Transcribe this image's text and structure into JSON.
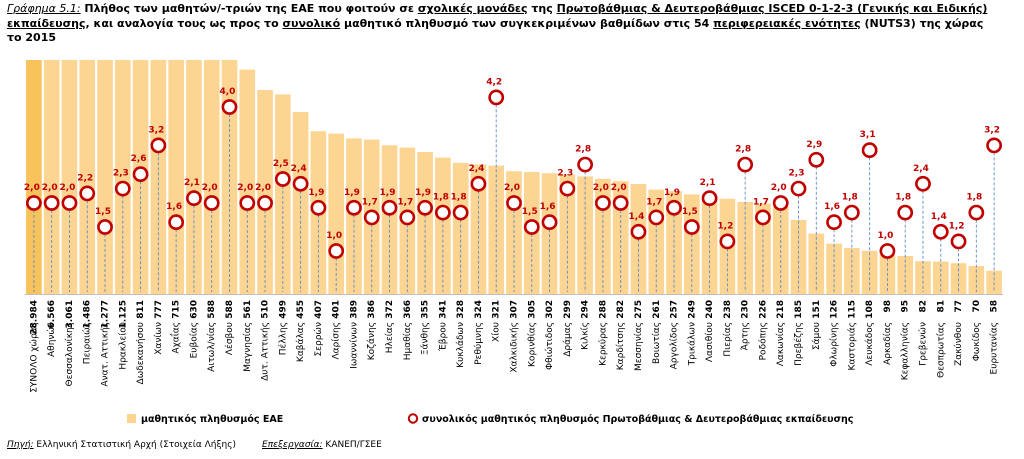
{
  "title": {
    "fig_label": "Γράφημα 5.1:",
    "t1": " Πλήθος των μαθητών/-τριών της ΕΑΕ που φοιτούν σε ",
    "u1": "σχολικές μονάδες",
    "t2": " της ",
    "u2": "Πρωτοβάθμιας & Δευτεροβάθμιας ISCED 0-1-2-3 (Γενικής και Ειδικής) εκπαίδευσης",
    "t3": ", και αναλογία τους ως προς το ",
    "u3": "συνολικό",
    "t4": " μαθητικό πληθυσμό των συγκεκριμένων βαθμίδων στις 54 ",
    "u4": "περιφερειακές ενότητες",
    "t5": " (NUTS3) της χώρας το 2015"
  },
  "chart_data": {
    "type": "bar",
    "categories": [
      "ΣΥΝΟΛΟ χώρας",
      "Αθηνών",
      "Θεσσαλονίκης",
      "Πειραιώς",
      "Ανατ. Αττικής",
      "Ηρακλείου",
      "Δωδεκανήσου",
      "Χανίων",
      "Αχαΐας",
      "Ευβοίας",
      "Αιτωλ/νίας",
      "Λέσβου",
      "Μαγνησίας",
      "Δυτ. Αττικής",
      "Πέλλης",
      "Καβάλας",
      "Σερρών",
      "Λαρίσης",
      "Ιωαννίνων",
      "Κοζάνης",
      "Ηλείας",
      "Ημαθίας",
      "Ξάνθης",
      "Έβρου",
      "Κυκλάδων",
      "Ρεθύμνης",
      "Χίου",
      "Χαλκιδικής",
      "Κορινθίας",
      "Φθιώτιδος",
      "Δράμας",
      "Κιλκίς",
      "Κερκύρας",
      "Καρδίτσης",
      "Μεσσηνίας",
      "Βοιωτίας",
      "Αργολίδος",
      "Τρικάλων",
      "Λασιθίου",
      "Πιερίας",
      "Άρτης",
      "Ροδόπης",
      "Λακωνίας",
      "Πρεβέζης",
      "Σάμου",
      "Φλωρίνης",
      "Καστοριάς",
      "Λευκάδος",
      "Αρκαδίας",
      "Κεφαλληνίας",
      "Γρεβενών",
      "Θεσπρωτίας",
      "Ζακύνθου",
      "Φωκίδος",
      "Ευρυτανίας"
    ],
    "series": [
      {
        "name": "μαθητικός πληθυσμός ΕΑΕ",
        "type": "bar",
        "values": [
          28984,
          6566,
          3061,
          1486,
          1277,
          1125,
          811,
          777,
          715,
          630,
          588,
          588,
          561,
          510,
          499,
          455,
          407,
          401,
          389,
          386,
          372,
          366,
          355,
          341,
          328,
          324,
          321,
          307,
          305,
          302,
          299,
          294,
          288,
          282,
          275,
          261,
          257,
          249,
          240,
          238,
          230,
          226,
          218,
          185,
          151,
          126,
          115,
          108,
          98,
          95,
          82,
          81,
          77,
          70,
          58
        ],
        "labels": [
          "28.984",
          "6.566",
          "3.061",
          "1.486",
          "1.277",
          "1.125",
          "811",
          "777",
          "715",
          "630",
          "588",
          "588",
          "561",
          "510",
          "499",
          "455",
          "407",
          "401",
          "389",
          "386",
          "372",
          "366",
          "355",
          "341",
          "328",
          "324",
          "321",
          "307",
          "305",
          "302",
          "299",
          "294",
          "288",
          "282",
          "275",
          "261",
          "257",
          "249",
          "240",
          "238",
          "230",
          "226",
          "218",
          "185",
          "151",
          "126",
          "115",
          "108",
          "98",
          "95",
          "82",
          "81",
          "77",
          "70",
          "58"
        ]
      },
      {
        "name": "συνολικός μαθητικός πληθυσμός Πρωτοβάθμιας & Δευτεροβάθμιας εκπαίδευσης",
        "type": "scatter",
        "values": [
          2.0,
          2.0,
          2.0,
          2.2,
          1.5,
          2.3,
          2.6,
          3.2,
          1.6,
          2.1,
          2.0,
          4.0,
          2.0,
          2.0,
          2.5,
          2.4,
          1.9,
          1.0,
          1.9,
          1.7,
          1.9,
          1.7,
          1.9,
          1.8,
          1.8,
          2.4,
          4.2,
          2.0,
          1.5,
          1.6,
          2.3,
          2.8,
          2.0,
          2.0,
          1.4,
          1.7,
          1.9,
          1.5,
          2.1,
          1.2,
          2.8,
          1.7,
          2.0,
          2.3,
          2.9,
          1.6,
          1.8,
          3.1,
          1.0,
          1.8,
          2.4,
          1.4,
          1.2,
          1.8,
          3.2
        ],
        "labels": [
          "2,0",
          "2,0",
          "2,0",
          "2,2",
          "1,5",
          "2,3",
          "2,6",
          "3,2",
          "1,6",
          "2,1",
          "2,0",
          "4,0",
          "2,0",
          "2,0",
          "2,5",
          "2,4",
          "1,9",
          "1,0",
          "1,9",
          "1,7",
          "1,9",
          "1,7",
          "1,9",
          "1,8",
          "1,8",
          "2,4",
          "4,2",
          "2,0",
          "1,5",
          "1,6",
          "2,3",
          "2,8",
          "2,0",
          "2,0",
          "1,4",
          "1,7",
          "1,9",
          "1,5",
          "2,1",
          "1,2",
          "2,8",
          "1,7",
          "2,0",
          "2,3",
          "2,9",
          "1,6",
          "1,8",
          "3,1",
          "1,0",
          "1,8",
          "2,4",
          "1,4",
          "1,2",
          "1,8",
          "3,2"
        ]
      }
    ],
    "legend_position": "bottom",
    "grid": false
  },
  "footer": {
    "source_label": "Πηγή:",
    "source_text": " Ελληνική Στατιστική Αρχή (Στοιχεία Λήξης)",
    "processing_label": "Επεξεργασία:",
    "processing_text": " ΚΑΝΕΠ/ΓΣΕΕ"
  },
  "colors": {
    "bar": "#fdd593",
    "bar_first": "#f9c35c",
    "dot_stroke": "#c00000",
    "dot_fill": "#ffffff",
    "leader": "#5b8cc9"
  }
}
